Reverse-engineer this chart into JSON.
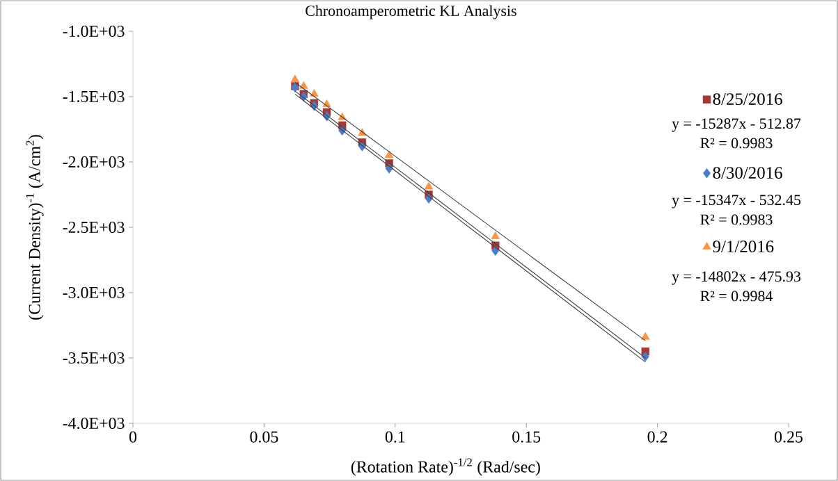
{
  "chart_data": {
    "type": "scatter",
    "title": "Chronoamperometric KL Analysis",
    "xlabel": "(Rotation Rate)$^{-1/2}$ (Rad/sec)",
    "ylabel": "(Current Density)$^{-1}$ (A/cm$^{2}$)",
    "xlim": [
      0,
      0.25
    ],
    "xticks": [
      0,
      0.05,
      0.1,
      0.15,
      0.2,
      0.25
    ],
    "ylim": [
      -4000,
      -1000
    ],
    "yticks": [
      {
        "value": -4000,
        "label": "-4.0E+03"
      },
      {
        "value": -3500,
        "label": "-3.5E+03"
      },
      {
        "value": -3000,
        "label": "-3.0E+03"
      },
      {
        "value": -2500,
        "label": "-2.5E+03"
      },
      {
        "value": -2000,
        "label": "-2.0E+03"
      },
      {
        "value": -1500,
        "label": "-1.5E+03"
      },
      {
        "value": -1000,
        "label": "-1.0E+03"
      }
    ],
    "grid": false,
    "legend": "top right",
    "x": [
      0.0618,
      0.0651,
      0.0691,
      0.0739,
      0.0798,
      0.0874,
      0.0977,
      0.1128,
      0.1382,
      0.1954
    ],
    "series": [
      {
        "name": "8/25/2016",
        "marker": "square",
        "color": "#a33a3a",
        "values": [
          -1420,
          -1480,
          -1550,
          -1620,
          -1720,
          -1850,
          -2010,
          -2250,
          -2640,
          -3450
        ]
      },
      {
        "name": "8/30/2016",
        "marker": "diamond",
        "color": "#4a7cc7",
        "values": [
          -1430,
          -1500,
          -1570,
          -1650,
          -1760,
          -1880,
          -2050,
          -2280,
          -2680,
          -3490
        ]
      },
      {
        "name": "9/1/2016",
        "marker": "triangle",
        "color": "#f79646",
        "values": [
          -1370,
          -1420,
          -1480,
          -1560,
          -1660,
          -1780,
          -1950,
          -2190,
          -2570,
          -3340
        ]
      },
      {
        "type": "line",
        "marker": "none",
        "color": "#404040",
        "values": [
          -1458,
          -1508,
          -1569,
          -1643,
          -1733,
          -1849,
          -2006,
          -2237,
          -2626,
          -3500
        ]
      },
      {
        "type": "line",
        "marker": "none",
        "color": "#404040",
        "values": [
          -1481,
          -1532,
          -1593,
          -1667,
          -1757,
          -1874,
          -2032,
          -2264,
          -2653,
          -3531
        ]
      },
      {
        "type": "line",
        "marker": "none",
        "color": "#404040",
        "values": [
          -1391,
          -1440,
          -1499,
          -1570,
          -1657,
          -1770,
          -1922,
          -2146,
          -2522,
          -3368
        ]
      }
    ],
    "annotations": [
      "y = -15287x - 512.87",
      "R² = 0.9983",
      "y = -15347x - 532.45",
      "R² = 0.9983",
      "y = -14802x - 475.93",
      "R² = 0.9984"
    ]
  }
}
